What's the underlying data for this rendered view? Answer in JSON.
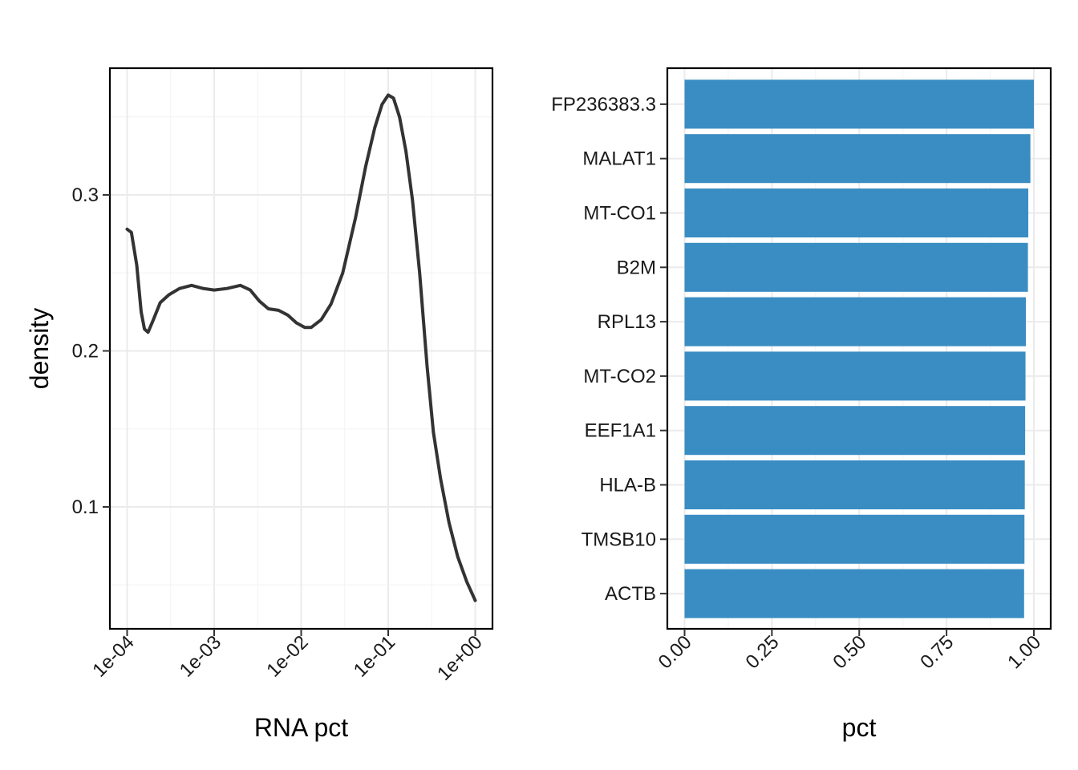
{
  "chart_data": [
    {
      "type": "line",
      "xlabel": "RNA pct",
      "ylabel": "density",
      "x_scale": "log10",
      "xlim": [
        0.0001,
        1
      ],
      "ylim": [
        0.03,
        0.37
      ],
      "x_ticks": [
        {
          "value": 0.0001,
          "label": "1e-04"
        },
        {
          "value": 0.001,
          "label": "1e-03"
        },
        {
          "value": 0.01,
          "label": "1e-02"
        },
        {
          "value": 0.1,
          "label": "1e-01"
        },
        {
          "value": 1,
          "label": "1e+00"
        }
      ],
      "y_ticks": [
        {
          "value": 0.1,
          "label": "0.1"
        },
        {
          "value": 0.2,
          "label": "0.2"
        },
        {
          "value": 0.3,
          "label": "0.3"
        }
      ],
      "grid": true,
      "line_color": "#333333",
      "series": [
        {
          "points": [
            [
              0.0001,
              0.278
            ],
            [
              0.000112,
              0.276
            ],
            [
              0.000129,
              0.255
            ],
            [
              0.000145,
              0.225
            ],
            [
              0.000158,
              0.214
            ],
            [
              0.000174,
              0.212
            ],
            [
              0.0002,
              0.22
            ],
            [
              0.00024,
              0.231
            ],
            [
              0.000302,
              0.236
            ],
            [
              0.0004,
              0.24
            ],
            [
              0.00055,
              0.242
            ],
            [
              0.00075,
              0.24
            ],
            [
              0.001,
              0.239
            ],
            [
              0.0014,
              0.24
            ],
            [
              0.002,
              0.242
            ],
            [
              0.0026,
              0.239
            ],
            [
              0.0033,
              0.232
            ],
            [
              0.0042,
              0.227
            ],
            [
              0.0055,
              0.226
            ],
            [
              0.007,
              0.223
            ],
            [
              0.0088,
              0.218
            ],
            [
              0.011,
              0.215
            ],
            [
              0.013,
              0.215
            ],
            [
              0.017,
              0.22
            ],
            [
              0.022,
              0.23
            ],
            [
              0.03,
              0.25
            ],
            [
              0.042,
              0.285
            ],
            [
              0.055,
              0.318
            ],
            [
              0.07,
              0.343
            ],
            [
              0.085,
              0.358
            ],
            [
              0.1,
              0.364
            ],
            [
              0.115,
              0.362
            ],
            [
              0.135,
              0.35
            ],
            [
              0.16,
              0.328
            ],
            [
              0.19,
              0.297
            ],
            [
              0.23,
              0.25
            ],
            [
              0.28,
              0.19
            ],
            [
              0.33,
              0.148
            ],
            [
              0.4,
              0.118
            ],
            [
              0.5,
              0.09
            ],
            [
              0.63,
              0.068
            ],
            [
              0.8,
              0.052
            ],
            [
              1.0,
              0.04
            ]
          ]
        }
      ]
    },
    {
      "type": "bar",
      "orientation": "horizontal",
      "xlabel": "pct",
      "ylabel": "",
      "xlim": [
        0,
        1
      ],
      "x_ticks": [
        {
          "value": 0,
          "label": "0.00"
        },
        {
          "value": 0.25,
          "label": "0.25"
        },
        {
          "value": 0.5,
          "label": "0.50"
        },
        {
          "value": 0.75,
          "label": "0.75"
        },
        {
          "value": 1,
          "label": "1.00"
        }
      ],
      "grid": true,
      "bar_color": "#3a8dc3",
      "categories": [
        "FP236383.3",
        "MALAT1",
        "MT-CO1",
        "B2M",
        "RPL13",
        "MT-CO2",
        "EEF1A1",
        "HLA-B",
        "TMSB10",
        "ACTB"
      ],
      "values": [
        1.0,
        0.99,
        0.984,
        0.983,
        0.977,
        0.976,
        0.975,
        0.974,
        0.973,
        0.972
      ]
    }
  ]
}
